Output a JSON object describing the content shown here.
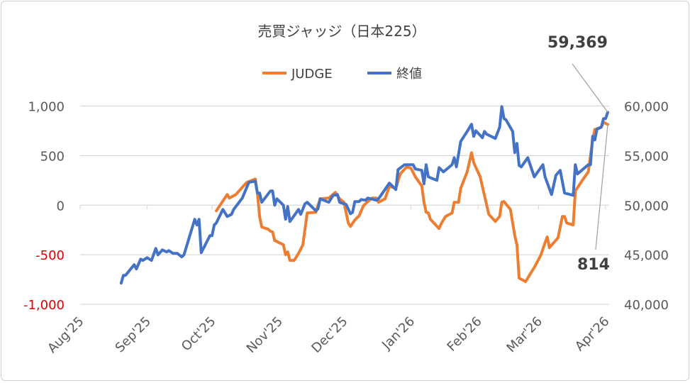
{
  "chart_data": {
    "type": "line",
    "title": "売買ジャッジ（日本225）",
    "legend": {
      "position": "top",
      "entries": [
        "JUDGE",
        "終値"
      ]
    },
    "x_unit": "days since 2025-08-01",
    "x_ticks": [
      {
        "day": 0,
        "label": "Aug'25"
      },
      {
        "day": 31,
        "label": "Sep'25"
      },
      {
        "day": 61,
        "label": "Oct'25"
      },
      {
        "day": 92,
        "label": "Nov'25"
      },
      {
        "day": 122,
        "label": "Dec'25"
      },
      {
        "day": 153,
        "label": "Jan'26"
      },
      {
        "day": 184,
        "label": "Feb'26"
      },
      {
        "day": 212,
        "label": "Mar'26"
      },
      {
        "day": 243,
        "label": "Apr'26"
      }
    ],
    "xlim": [
      0,
      243
    ],
    "y_left": {
      "lim": [
        -1000,
        1000
      ],
      "ticks": [
        {
          "v": 1000,
          "label": "1,000",
          "color": "#595959"
        },
        {
          "v": 500,
          "label": "500",
          "color": "#595959"
        },
        {
          "v": 0,
          "label": "0",
          "color": "#595959"
        },
        {
          "v": -500,
          "label": "-500",
          "color": "#E00000"
        },
        {
          "v": -1000,
          "label": "-1,000",
          "color": "#E00000"
        }
      ]
    },
    "y_right": {
      "lim": [
        40000,
        60000
      ],
      "ticks": [
        {
          "v": 60000,
          "label": "60,000"
        },
        {
          "v": 55000,
          "label": "55,000"
        },
        {
          "v": 50000,
          "label": "50,000"
        },
        {
          "v": 45000,
          "label": "45,000"
        },
        {
          "v": 40000,
          "label": "40,000"
        }
      ]
    },
    "grid": true,
    "series": [
      {
        "name": "JUDGE",
        "axis": "left",
        "color": "#ED7D31",
        "points": [
          [
            63,
            -57
          ],
          [
            68,
            107
          ],
          [
            69,
            71
          ],
          [
            72,
            107
          ],
          [
            77,
            229
          ],
          [
            81,
            264
          ],
          [
            82,
            121
          ],
          [
            83,
            -114
          ],
          [
            84,
            -221
          ],
          [
            87,
            -243
          ],
          [
            88,
            -264
          ],
          [
            89,
            -271
          ],
          [
            90,
            -357
          ],
          [
            94,
            -400
          ],
          [
            95,
            -500
          ],
          [
            96,
            -471
          ],
          [
            97,
            -557
          ],
          [
            99,
            -557
          ],
          [
            101,
            -486
          ],
          [
            103,
            -400
          ],
          [
            105,
            -79
          ],
          [
            109,
            -71
          ],
          [
            111,
            64
          ],
          [
            115,
            71
          ],
          [
            118,
            129
          ],
          [
            120,
            64
          ],
          [
            122,
            29
          ],
          [
            124,
            -179
          ],
          [
            125,
            -214
          ],
          [
            127,
            -150
          ],
          [
            129,
            -107
          ],
          [
            131,
            -7
          ],
          [
            133,
            36
          ],
          [
            135,
            71
          ],
          [
            137,
            71
          ],
          [
            138,
            29
          ],
          [
            141,
            64
          ],
          [
            143,
            190
          ],
          [
            146,
            171
          ],
          [
            148,
            314
          ],
          [
            151,
            386
          ],
          [
            153,
            371
          ],
          [
            155,
            286
          ],
          [
            158,
            193
          ],
          [
            159,
            29
          ],
          [
            160,
            -71
          ],
          [
            161,
            -79
          ],
          [
            162,
            -143
          ],
          [
            166,
            -236
          ],
          [
            167,
            -186
          ],
          [
            169,
            -114
          ],
          [
            172,
            -79
          ],
          [
            173,
            29
          ],
          [
            175,
            29
          ],
          [
            176,
            171
          ],
          [
            179,
            336
          ],
          [
            181,
            529
          ],
          [
            182,
            429
          ],
          [
            185,
            286
          ],
          [
            189,
            -93
          ],
          [
            192,
            -164
          ],
          [
            194,
            -114
          ],
          [
            195,
            29
          ],
          [
            196,
            36
          ],
          [
            199,
            -43
          ],
          [
            201,
            -307
          ],
          [
            202,
            -400
          ],
          [
            203,
            -736
          ],
          [
            206,
            -771
          ],
          [
            209,
            -664
          ],
          [
            210,
            -629
          ],
          [
            213,
            -507
          ],
          [
            215,
            -379
          ],
          [
            216,
            -321
          ],
          [
            217,
            -429
          ],
          [
            221,
            -329
          ],
          [
            223,
            -114
          ],
          [
            224,
            -114
          ],
          [
            225,
            -179
          ],
          [
            228,
            -200
          ],
          [
            229,
            143
          ],
          [
            232,
            243
          ],
          [
            235,
            336
          ],
          [
            237,
            657
          ],
          [
            238,
            764
          ],
          [
            241,
            786
          ],
          [
            242,
            836
          ],
          [
            244,
            814
          ]
        ]
      },
      {
        "name": "終値",
        "axis": "right",
        "color": "#4472C4",
        "points": [
          [
            19,
            42130
          ],
          [
            20,
            42920
          ],
          [
            21,
            42920
          ],
          [
            25,
            43990
          ],
          [
            26,
            43560
          ],
          [
            28,
            44560
          ],
          [
            29,
            44420
          ],
          [
            31,
            44700
          ],
          [
            33,
            44420
          ],
          [
            35,
            45630
          ],
          [
            36,
            44990
          ],
          [
            38,
            45490
          ],
          [
            40,
            45280
          ],
          [
            41,
            45420
          ],
          [
            43,
            45130
          ],
          [
            45,
            45130
          ],
          [
            47,
            44780
          ],
          [
            48,
            44990
          ],
          [
            50,
            46420
          ],
          [
            53,
            48570
          ],
          [
            54,
            48000
          ],
          [
            55,
            48570
          ],
          [
            56,
            45210
          ],
          [
            60,
            46920
          ],
          [
            61,
            46920
          ],
          [
            62,
            48000
          ],
          [
            63,
            48210
          ],
          [
            66,
            49570
          ],
          [
            68,
            48860
          ],
          [
            70,
            49070
          ],
          [
            71,
            49570
          ],
          [
            75,
            50720
          ],
          [
            78,
            52290
          ],
          [
            81,
            52430
          ],
          [
            82,
            51220
          ],
          [
            83,
            51220
          ],
          [
            84,
            50290
          ],
          [
            88,
            51430
          ],
          [
            89,
            51430
          ],
          [
            90,
            50000
          ],
          [
            91,
            50640
          ],
          [
            94,
            50000
          ],
          [
            95,
            48570
          ],
          [
            96,
            49860
          ],
          [
            97,
            48350
          ],
          [
            101,
            49570
          ],
          [
            102,
            49070
          ],
          [
            104,
            50140
          ],
          [
            105,
            50290
          ],
          [
            109,
            49430
          ],
          [
            110,
            49640
          ],
          [
            111,
            50640
          ],
          [
            115,
            50290
          ],
          [
            117,
            51000
          ],
          [
            119,
            51070
          ],
          [
            120,
            50290
          ],
          [
            123,
            50070
          ],
          [
            125,
            49140
          ],
          [
            126,
            49280
          ],
          [
            127,
            50360
          ],
          [
            129,
            50360
          ],
          [
            130,
            50570
          ],
          [
            132,
            50500
          ],
          [
            133,
            50720
          ],
          [
            137,
            50500
          ],
          [
            138,
            50640
          ],
          [
            143,
            52220
          ],
          [
            146,
            51570
          ],
          [
            147,
            53580
          ],
          [
            150,
            54080
          ],
          [
            154,
            54080
          ],
          [
            155,
            53650
          ],
          [
            158,
            53510
          ],
          [
            159,
            52150
          ],
          [
            160,
            54080
          ],
          [
            161,
            52860
          ],
          [
            165,
            52500
          ],
          [
            166,
            53790
          ],
          [
            168,
            53360
          ],
          [
            172,
            54080
          ],
          [
            173,
            54790
          ],
          [
            174,
            53860
          ],
          [
            176,
            56440
          ],
          [
            179,
            57440
          ],
          [
            181,
            58160
          ],
          [
            182,
            56940
          ],
          [
            183,
            57510
          ],
          [
            186,
            56800
          ],
          [
            187,
            57440
          ],
          [
            188,
            57160
          ],
          [
            192,
            56730
          ],
          [
            194,
            57870
          ],
          [
            195,
            59950
          ],
          [
            196,
            58730
          ],
          [
            197,
            58590
          ],
          [
            200,
            57440
          ],
          [
            201,
            55300
          ],
          [
            202,
            56230
          ],
          [
            203,
            54010
          ],
          [
            204,
            53860
          ],
          [
            207,
            54790
          ],
          [
            210,
            52860
          ],
          [
            214,
            54080
          ],
          [
            215,
            52860
          ],
          [
            218,
            51070
          ],
          [
            220,
            53010
          ],
          [
            222,
            53510
          ],
          [
            224,
            51220
          ],
          [
            228,
            51000
          ],
          [
            229,
            54080
          ],
          [
            230,
            53150
          ],
          [
            235,
            54080
          ],
          [
            236,
            54080
          ],
          [
            237,
            56940
          ],
          [
            238,
            56580
          ],
          [
            239,
            57660
          ],
          [
            241,
            57870
          ],
          [
            242,
            58730
          ],
          [
            243,
            58730
          ],
          [
            244,
            59369
          ]
        ]
      }
    ],
    "annotations": [
      {
        "label": "59,369",
        "series": "終値",
        "value": 59369
      },
      {
        "label": "814",
        "series": "JUDGE",
        "value": 814
      }
    ]
  }
}
